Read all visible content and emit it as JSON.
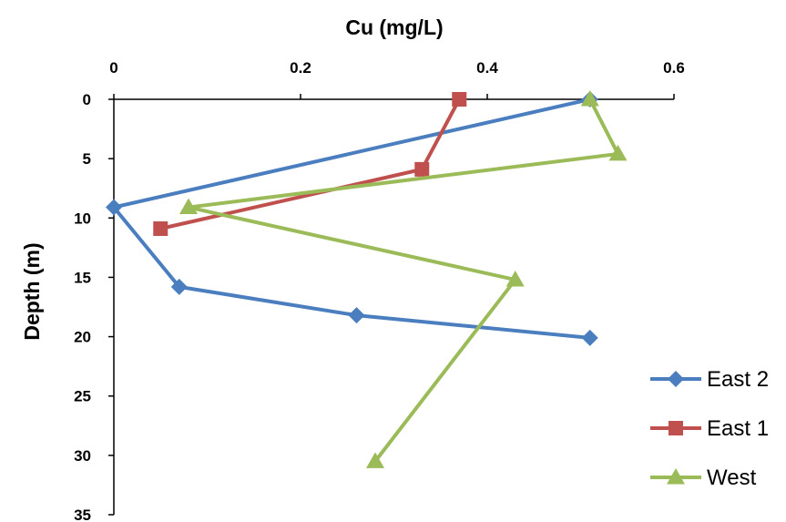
{
  "chart_data": {
    "type": "line",
    "title": "",
    "xlabel": "Cu (mg/L)",
    "ylabel": "Depth (m)",
    "xlim": [
      0,
      0.6
    ],
    "ylim": [
      0,
      35
    ],
    "y_inverted": true,
    "x_axis_position": "top",
    "x_ticks": [
      "0",
      "0.2",
      "0.4",
      "0.6"
    ],
    "y_ticks": [
      "0",
      "5",
      "10",
      "15",
      "20",
      "25",
      "30",
      "35"
    ],
    "grid": false,
    "legend_position": "right",
    "series": [
      {
        "name": "East 2",
        "color": "#4a7ebf",
        "marker": "diamond",
        "points": [
          {
            "x": 0.51,
            "y": 0
          },
          {
            "x": 0.0,
            "y": 9.1
          },
          {
            "x": 0.07,
            "y": 15.8
          },
          {
            "x": 0.26,
            "y": 18.2
          },
          {
            "x": 0.51,
            "y": 20.1
          }
        ]
      },
      {
        "name": "East 1",
        "color": "#c0504d",
        "marker": "square",
        "points": [
          {
            "x": 0.37,
            "y": 0
          },
          {
            "x": 0.33,
            "y": 5.9
          },
          {
            "x": 0.05,
            "y": 10.9
          }
        ]
      },
      {
        "name": "West",
        "color": "#9bbb59",
        "marker": "triangle",
        "points": [
          {
            "x": 0.51,
            "y": 0
          },
          {
            "x": 0.54,
            "y": 4.6
          },
          {
            "x": 0.08,
            "y": 9.1
          },
          {
            "x": 0.43,
            "y": 15.2
          },
          {
            "x": 0.28,
            "y": 30.5
          }
        ]
      }
    ]
  }
}
